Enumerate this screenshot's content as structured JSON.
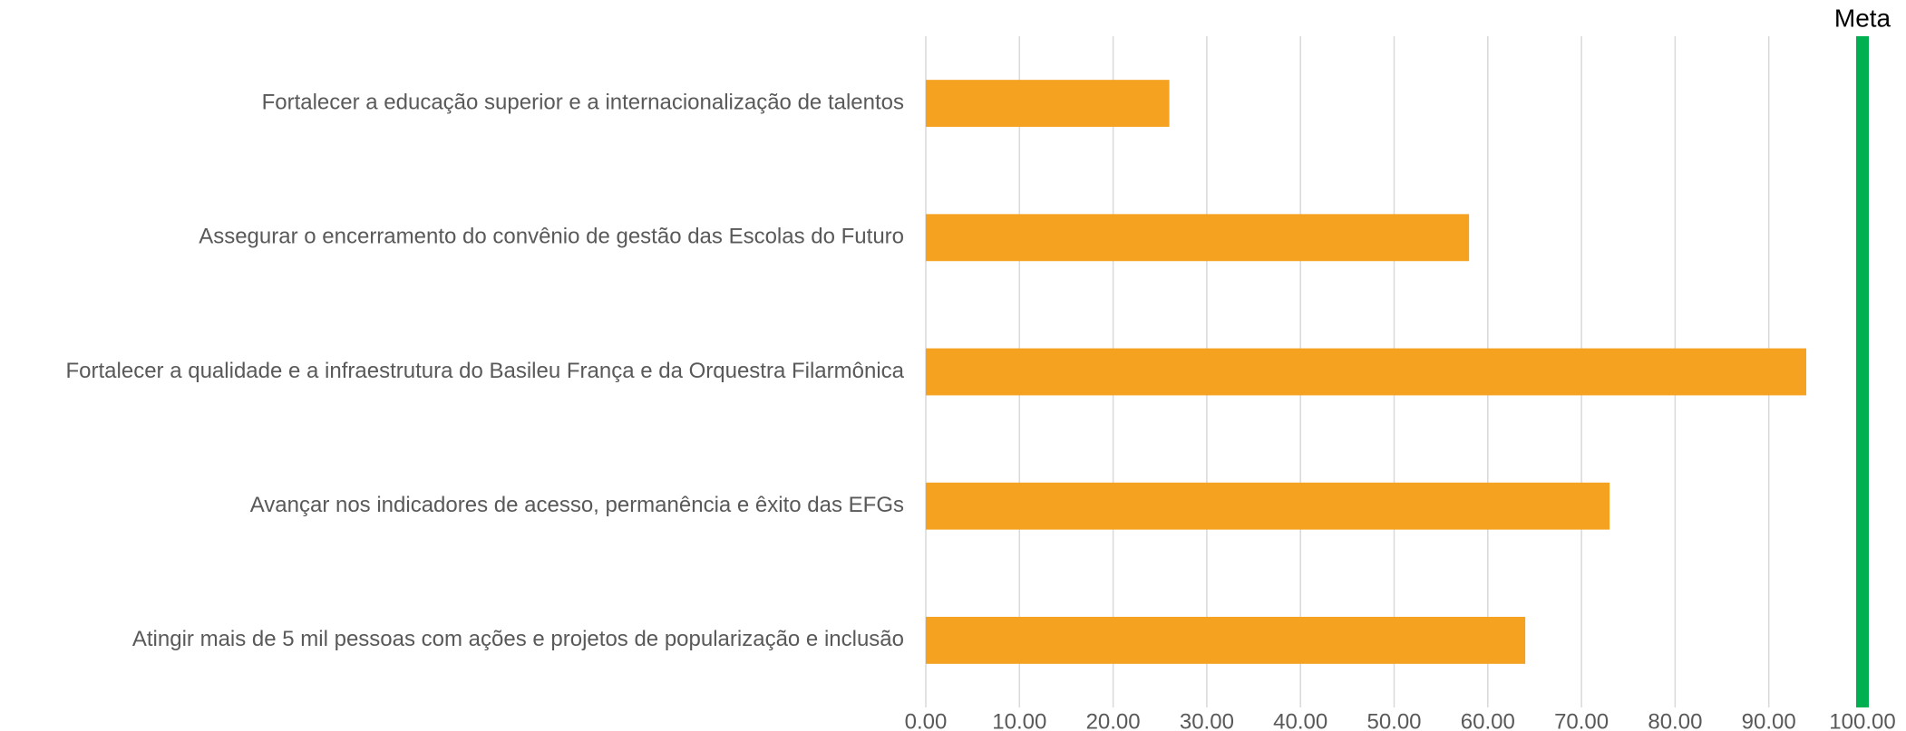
{
  "chart_data": {
    "type": "bar",
    "orientation": "horizontal",
    "categories": [
      "Fortalecer a educação superior e a internacionalização de talentos",
      "Assegurar o encerramento do convênio de gestão das Escolas do Futuro",
      "Fortalecer a qualidade e a infraestrutura do Basileu França e da Orquestra Filarmônica",
      "Avançar nos indicadores de acesso, permanência e êxito das EFGs",
      "Atingir mais de 5 mil pessoas com ações e projetos de popularização e inclusão"
    ],
    "values": [
      26,
      58,
      94,
      73,
      64
    ],
    "color": "#f5a220",
    "xlim": [
      0,
      100
    ],
    "xticks": [
      {
        "value": 0,
        "label": "0.00"
      },
      {
        "value": 10,
        "label": "10.00"
      },
      {
        "value": 20,
        "label": "20.00"
      },
      {
        "value": 30,
        "label": "30.00"
      },
      {
        "value": 40,
        "label": "40.00"
      },
      {
        "value": 50,
        "label": "50.00"
      },
      {
        "value": 60,
        "label": "60.00"
      },
      {
        "value": 70,
        "label": "70.00"
      },
      {
        "value": 80,
        "label": "80.00"
      },
      {
        "value": 90,
        "label": "90.00"
      },
      {
        "value": 100,
        "label": "100.00"
      }
    ],
    "grid": true,
    "target": {
      "name": "Meta",
      "value": 100,
      "color": "#00b050"
    }
  }
}
